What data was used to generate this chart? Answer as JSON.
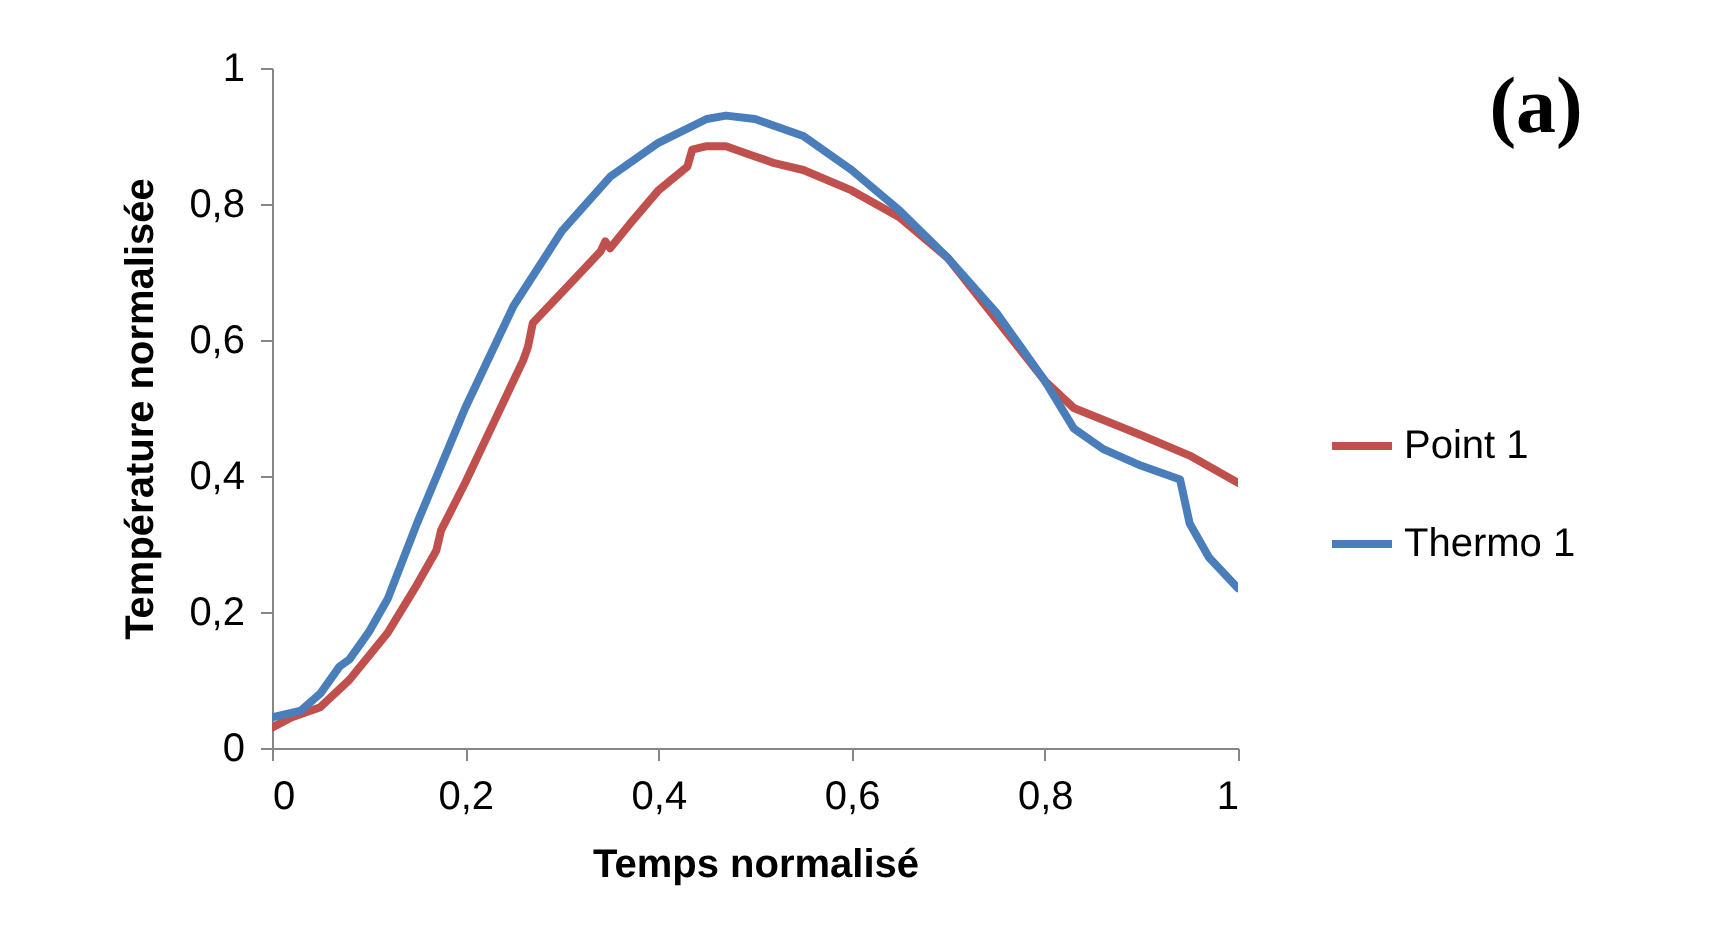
{
  "chart_data": {
    "type": "line",
    "xlabel": "Temps normalisé",
    "ylabel": "Température normalisée",
    "annotations": [
      "(a)"
    ],
    "xlim": [
      0,
      1
    ],
    "ylim": [
      0,
      1
    ],
    "xticks": [
      {
        "value": 0,
        "label": "0"
      },
      {
        "value": 0.2,
        "label": "0,2"
      },
      {
        "value": 0.4,
        "label": "0,4"
      },
      {
        "value": 0.6,
        "label": "0,6"
      },
      {
        "value": 0.8,
        "label": "0,8"
      },
      {
        "value": 1,
        "label": "1"
      }
    ],
    "yticks": [
      {
        "value": 0,
        "label": "0"
      },
      {
        "value": 0.2,
        "label": "0,2"
      },
      {
        "value": 0.4,
        "label": "0,4"
      },
      {
        "value": 0.6,
        "label": "0,6"
      },
      {
        "value": 0.8,
        "label": "0,8"
      },
      {
        "value": 1,
        "label": "1"
      }
    ],
    "grid": false,
    "legend": "right",
    "series": [
      {
        "name": "Point 1",
        "color": "#c0504d",
        "x": [
          0,
          0.02,
          0.05,
          0.08,
          0.12,
          0.15,
          0.17,
          0.175,
          0.2,
          0.23,
          0.26,
          0.265,
          0.27,
          0.3,
          0.34,
          0.345,
          0.35,
          0.37,
          0.4,
          0.43,
          0.435,
          0.45,
          0.47,
          0.5,
          0.52,
          0.55,
          0.6,
          0.65,
          0.7,
          0.75,
          0.8,
          0.83,
          0.9,
          0.95,
          1
        ],
        "values": [
          0.03,
          0.045,
          0.06,
          0.1,
          0.17,
          0.24,
          0.29,
          0.32,
          0.39,
          0.48,
          0.57,
          0.59,
          0.625,
          0.67,
          0.73,
          0.745,
          0.735,
          0.77,
          0.82,
          0.855,
          0.88,
          0.885,
          0.885,
          0.87,
          0.86,
          0.85,
          0.82,
          0.78,
          0.72,
          0.63,
          0.54,
          0.5,
          0.46,
          0.43,
          0.39
        ]
      },
      {
        "name": "Thermo 1",
        "color": "#4a7ebb",
        "x": [
          0,
          0.03,
          0.05,
          0.07,
          0.08,
          0.1,
          0.12,
          0.15,
          0.2,
          0.25,
          0.3,
          0.35,
          0.4,
          0.45,
          0.47,
          0.5,
          0.55,
          0.6,
          0.65,
          0.7,
          0.75,
          0.8,
          0.83,
          0.86,
          0.9,
          0.94,
          0.95,
          0.97,
          1
        ],
        "values": [
          0.045,
          0.055,
          0.08,
          0.12,
          0.13,
          0.17,
          0.22,
          0.33,
          0.5,
          0.65,
          0.76,
          0.84,
          0.89,
          0.925,
          0.93,
          0.925,
          0.9,
          0.85,
          0.79,
          0.72,
          0.64,
          0.54,
          0.47,
          0.44,
          0.415,
          0.395,
          0.33,
          0.28,
          0.235
        ]
      }
    ]
  }
}
